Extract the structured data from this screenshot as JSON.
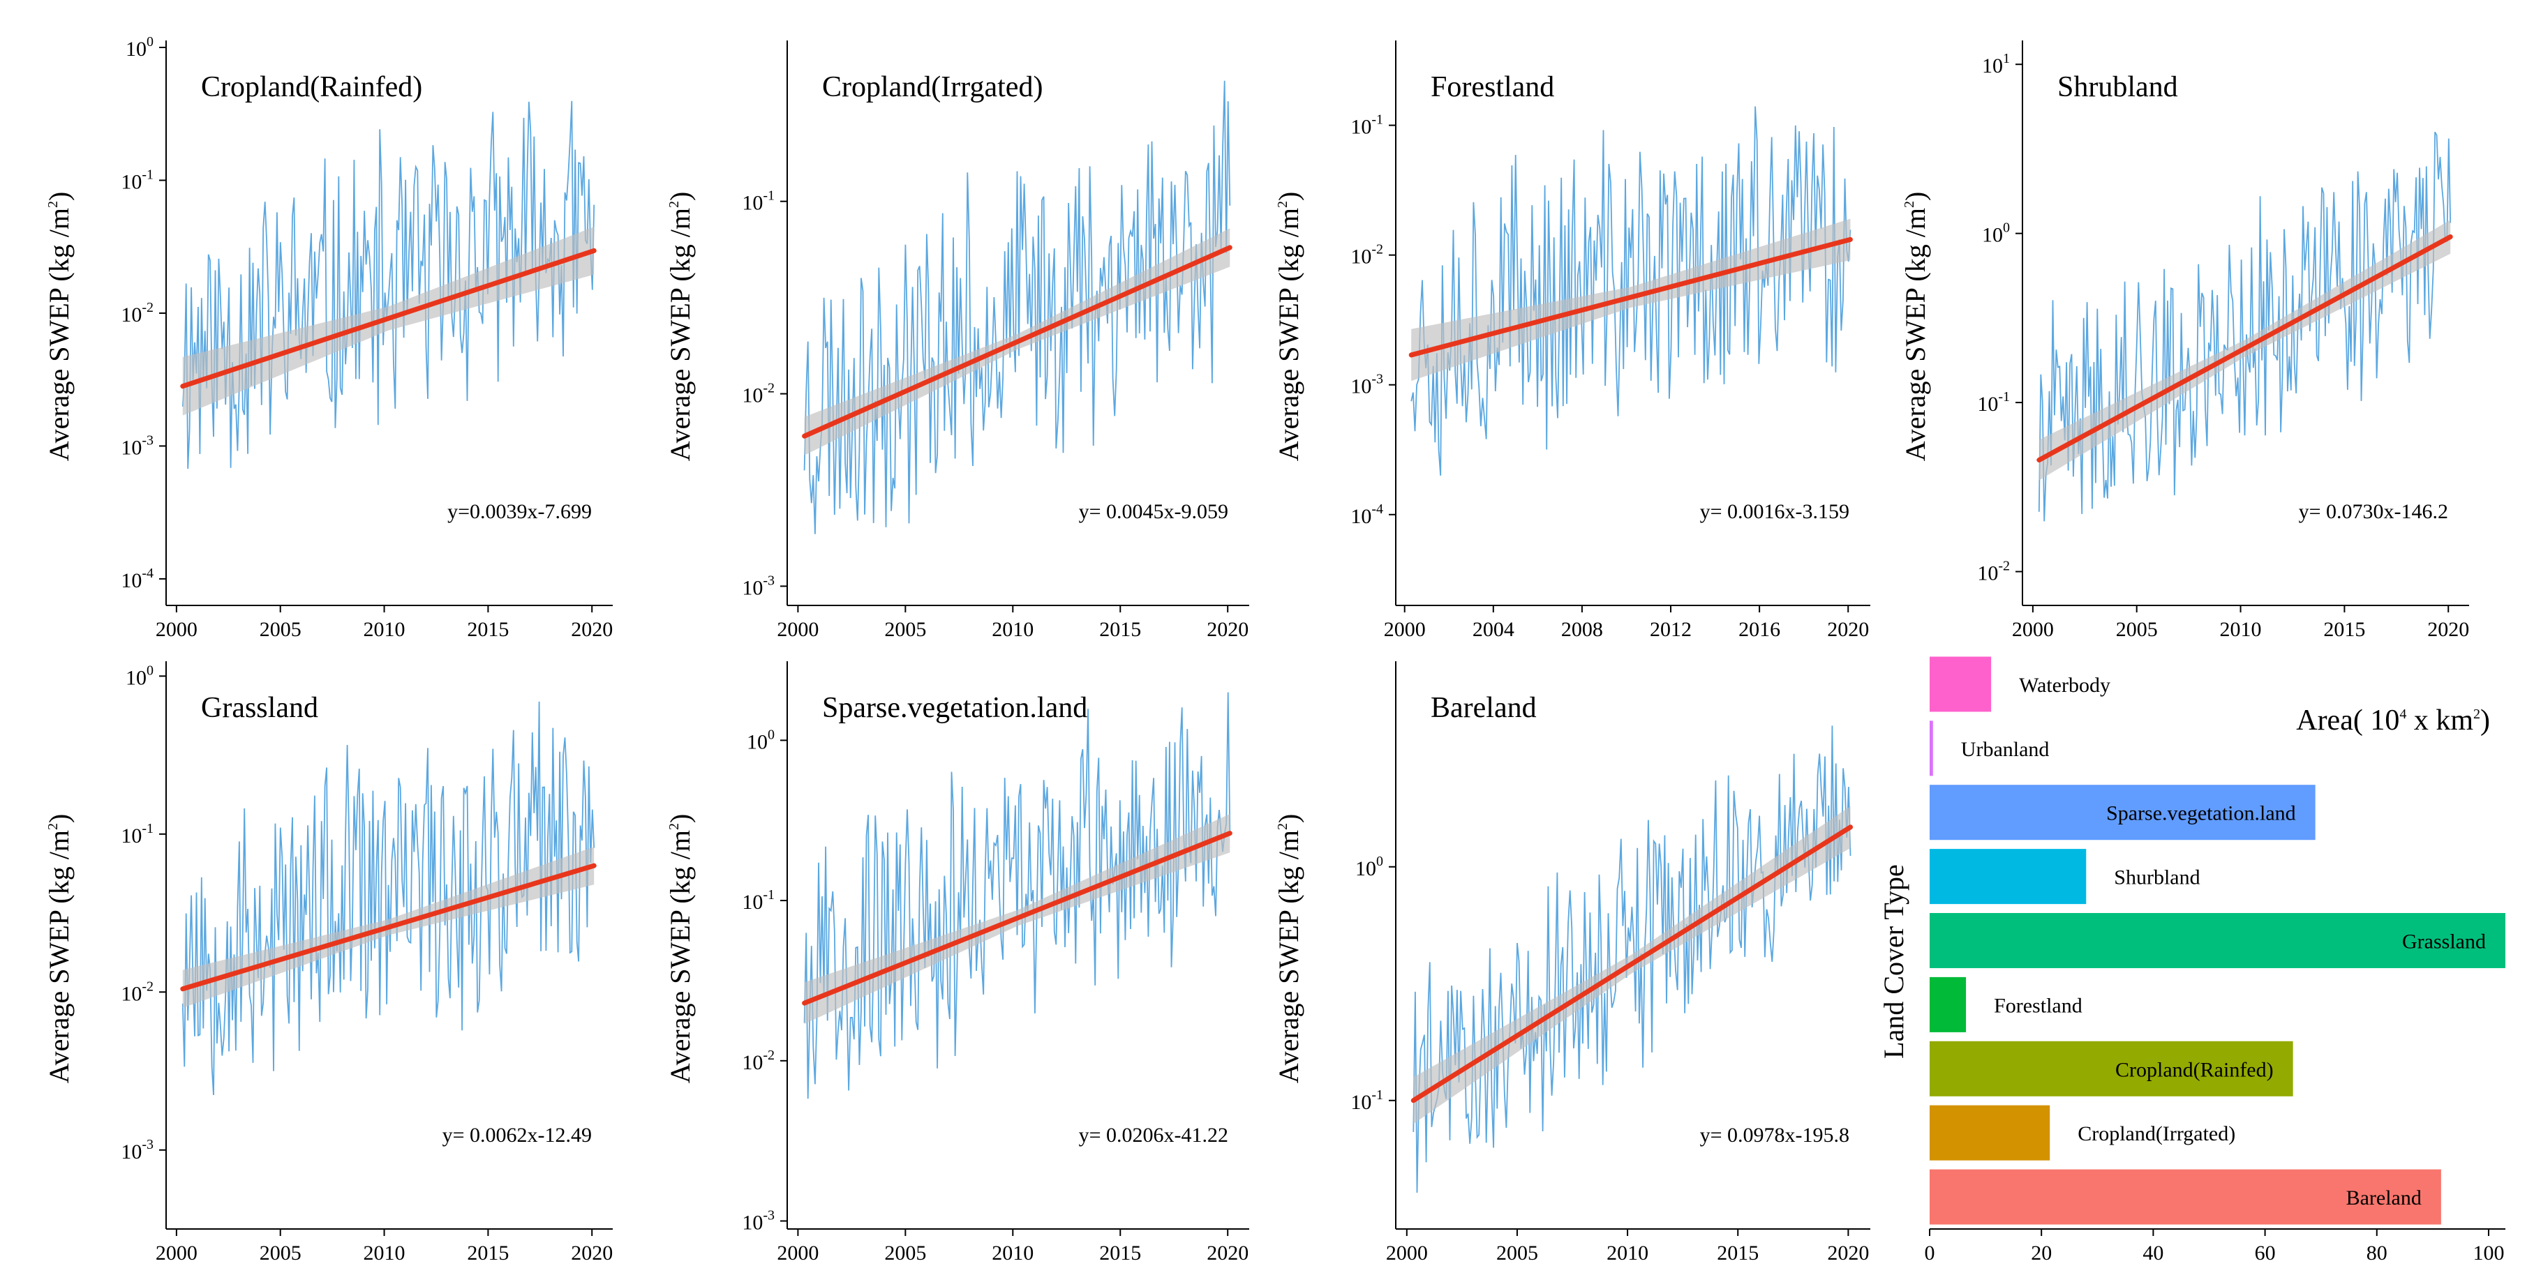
{
  "colors": {
    "series": "#5aa7e0",
    "trend": "#e8361c",
    "band": "#bfbfbf",
    "axis": "#000000"
  },
  "chart_data": [
    {
      "type": "line",
      "title": "Cropland(Rainfed)",
      "ylabel": "Average SWEP (kg /m",
      "ylabel_sup": "2",
      "ylabel_close": ")",
      "yscale": "log",
      "ylim_log10": [
        -4.2,
        0
      ],
      "y_ticks": [
        {
          "m": "10",
          "e": "0"
        },
        {
          "m": "10",
          "e": "-1"
        },
        {
          "m": "10",
          "e": "-2"
        },
        {
          "m": "10",
          "e": "-3"
        },
        {
          "m": "10",
          "e": "-4"
        }
      ],
      "y_tick_exps": [
        0,
        -1,
        -2,
        -3,
        -4
      ],
      "xlim": [
        1999.5,
        2021
      ],
      "x_ticks": [
        "2000",
        "2005",
        "2010",
        "2015",
        "2020"
      ],
      "x_tick_values": [
        2000,
        2005,
        2010,
        2015,
        2020
      ],
      "trend": {
        "start": [
          2000.3,
          -2.55
        ],
        "end": [
          2020.1,
          -1.53
        ],
        "band_start": 0.22,
        "band_mid": 0.09,
        "band_end": 0.18
      },
      "series_profile": {
        "base": -2.3,
        "slope": 0.048,
        "amp": 1.05,
        "min": -4.1,
        "max": -0.2,
        "seed": 11
      },
      "equation": "y=0.0039x-7.699"
    },
    {
      "type": "line",
      "title": "Cropland(Irrgated)",
      "ylabel": "Average SWEP (kg /m",
      "ylabel_sup": "2",
      "ylabel_close": ")",
      "yscale": "log",
      "ylim_log10": [
        -3.1,
        -0.2
      ],
      "y_ticks": [
        {
          "m": "10",
          "e": "-1"
        },
        {
          "m": "10",
          "e": "-2"
        },
        {
          "m": "10",
          "e": "-3"
        }
      ],
      "y_tick_exps": [
        -1,
        -2,
        -3
      ],
      "xlim": [
        1999.5,
        2021
      ],
      "x_ticks": [
        "2000",
        "2005",
        "2010",
        "2015",
        "2020"
      ],
      "x_tick_values": [
        2000,
        2005,
        2010,
        2015,
        2020
      ],
      "trend": {
        "start": [
          2000.3,
          -2.22
        ],
        "end": [
          2020.1,
          -1.24
        ],
        "band_start": 0.1,
        "band_mid": 0.04,
        "band_end": 0.1
      },
      "series_profile": {
        "base": -2.1,
        "slope": 0.05,
        "amp": 0.75,
        "min": -3.05,
        "max": -0.35,
        "seed": 23
      },
      "equation": "y= 0.0045x-9.059"
    },
    {
      "type": "line",
      "title": "Forestland",
      "ylabel": "Average SWEP (kg /m",
      "ylabel_sup": "2",
      "ylabel_close": ")",
      "yscale": "log",
      "ylim_log10": [
        -4.7,
        -0.4
      ],
      "y_ticks": [
        {
          "m": "10",
          "e": "-1"
        },
        {
          "m": "10",
          "e": "-2"
        },
        {
          "m": "10",
          "e": "-3"
        },
        {
          "m": "10",
          "e": "-4"
        }
      ],
      "y_tick_exps": [
        -1,
        -2,
        -3,
        -4
      ],
      "xlim": [
        1999.6,
        2021
      ],
      "x_ticks": [
        "2000",
        "2004",
        "2008",
        "2012",
        "2016",
        "2020"
      ],
      "x_tick_values": [
        2000,
        2004,
        2008,
        2012,
        2016,
        2020
      ],
      "trend": {
        "start": [
          2000.3,
          -2.77
        ],
        "end": [
          2020.1,
          -1.88
        ],
        "band_start": 0.2,
        "band_mid": 0.08,
        "band_end": 0.16
      },
      "series_profile": {
        "base": -2.6,
        "slope": 0.04,
        "amp": 1.1,
        "min": -4.6,
        "max": -0.55,
        "seed": 37
      },
      "equation": "y= 0.0016x-3.159"
    },
    {
      "type": "line",
      "title": "Shrubland",
      "ylabel": "Average SWEP (kg /m",
      "ylabel_sup": "2",
      "ylabel_close": ")",
      "yscale": "log",
      "ylim_log10": [
        -2.2,
        1.1
      ],
      "y_ticks": [
        {
          "m": "10",
          "e": "1"
        },
        {
          "m": "10",
          "e": "0"
        },
        {
          "m": "10",
          "e": "-1"
        },
        {
          "m": "10",
          "e": "-2"
        }
      ],
      "y_tick_exps": [
        1,
        0,
        -1,
        -2
      ],
      "xlim": [
        1999.5,
        2021
      ],
      "x_ticks": [
        "2000",
        "2005",
        "2010",
        "2015",
        "2020"
      ],
      "x_tick_values": [
        2000,
        2005,
        2010,
        2015,
        2020
      ],
      "trend": {
        "start": [
          2000.3,
          -1.34
        ],
        "end": [
          2020.1,
          -0.02
        ],
        "band_start": 0.12,
        "band_mid": 0.05,
        "band_end": 0.1
      },
      "series_profile": {
        "base": -1.25,
        "slope": 0.066,
        "amp": 0.7,
        "min": -2.1,
        "max": 0.95,
        "seed": 41
      },
      "equation": "y= 0.0730x-146.2"
    },
    {
      "type": "line",
      "title": "Grassland",
      "ylabel": "Average SWEP (kg /m",
      "ylabel_sup": "2",
      "ylabel_close": ")",
      "yscale": "log",
      "ylim_log10": [
        -3.5,
        0.05
      ],
      "y_ticks": [
        {
          "m": "10",
          "e": "0"
        },
        {
          "m": "10",
          "e": "-1"
        },
        {
          "m": "10",
          "e": "-2"
        },
        {
          "m": "10",
          "e": "-3"
        }
      ],
      "y_tick_exps": [
        0,
        -1,
        -2,
        -3
      ],
      "xlim": [
        1999.5,
        2021
      ],
      "x_ticks": [
        "2000",
        "2005",
        "2010",
        "2015",
        "2020"
      ],
      "x_tick_values": [
        2000,
        2005,
        2010,
        2015,
        2020
      ],
      "trend": {
        "start": [
          2000.3,
          -1.98
        ],
        "end": [
          2020.1,
          -1.2
        ],
        "band_start": 0.12,
        "band_mid": 0.05,
        "band_end": 0.12
      },
      "series_profile": {
        "base": -1.8,
        "slope": 0.04,
        "amp": 0.9,
        "min": -3.35,
        "max": -0.1,
        "seed": 53
      },
      "equation": "y= 0.0062x-12.49"
    },
    {
      "type": "line",
      "title": "Sparse.vegetation.land",
      "ylabel": "Average SWEP (kg /m",
      "ylabel_sup": "2",
      "ylabel_close": ")",
      "yscale": "log",
      "ylim_log10": [
        -3.05,
        0.45
      ],
      "y_ticks": [
        {
          "m": "10",
          "e": "0"
        },
        {
          "m": "10",
          "e": "-1"
        },
        {
          "m": "10",
          "e": "-2"
        },
        {
          "m": "10",
          "e": "-3"
        }
      ],
      "y_tick_exps": [
        0,
        -1,
        -2,
        -3
      ],
      "xlim": [
        1999.5,
        2021
      ],
      "x_ticks": [
        "2000",
        "2005",
        "2010",
        "2015",
        "2020"
      ],
      "x_tick_values": [
        2000,
        2005,
        2010,
        2015,
        2020
      ],
      "trend": {
        "start": [
          2000.3,
          -1.64
        ],
        "end": [
          2020.1,
          -0.58
        ],
        "band_start": 0.13,
        "band_mid": 0.05,
        "band_end": 0.12
      },
      "series_profile": {
        "base": -1.45,
        "slope": 0.052,
        "amp": 0.85,
        "min": -2.8,
        "max": 0.3,
        "seed": 67
      },
      "equation": "y= 0.0206x-41.22"
    },
    {
      "type": "line",
      "title": "Bareland",
      "ylabel": "Average SWEP (kg /m",
      "ylabel_sup": "2",
      "ylabel_close": ")",
      "yscale": "log",
      "ylim_log10": [
        -1.55,
        0.85
      ],
      "y_ticks": [
        {
          "m": "10",
          "e": "0"
        },
        {
          "m": "10",
          "e": "-1"
        }
      ],
      "y_tick_exps": [
        0,
        -1
      ],
      "xlim": [
        1999.5,
        2021
      ],
      "x_ticks": [
        "2000",
        "2005",
        "2010",
        "2015",
        "2020"
      ],
      "x_tick_values": [
        2000,
        2005,
        2010,
        2015,
        2020
      ],
      "trend": {
        "start": [
          2000.3,
          -1.0
        ],
        "end": [
          2020.1,
          0.17
        ],
        "band_start": 0.1,
        "band_mid": 0.04,
        "band_end": 0.09
      },
      "series_profile": {
        "base": -0.95,
        "slope": 0.058,
        "amp": 0.5,
        "min": -1.5,
        "max": 0.8,
        "seed": 79
      },
      "equation": "y=  0.0978x-195.8"
    },
    {
      "type": "bar",
      "orientation": "horizontal",
      "ylabel": "Land Cover Type",
      "area_label": "Area( 10",
      "area_label_sup": "4",
      "area_label_rest": " x km",
      "area_label_sup2": "2",
      "area_label_close": ")",
      "xlim": [
        0,
        103
      ],
      "x_ticks": [
        "0",
        "20",
        "40",
        "60",
        "80",
        "100"
      ],
      "x_tick_values": [
        0,
        20,
        40,
        60,
        80,
        100
      ],
      "categories": [
        "Waterbody",
        "Urbanland",
        "Sparse.vegetation.land",
        "Shurbland",
        "Grassland",
        "Forestland",
        "Cropland(Rainfed)",
        "Cropland(Irrgated)",
        "Bareland"
      ],
      "values": [
        11,
        0.6,
        69,
        28,
        103,
        6.5,
        65,
        21.5,
        91.5
      ],
      "bar_colors": [
        "#ff61cc",
        "#db72fb",
        "#619cff",
        "#00b9e3",
        "#00bf7d",
        "#00ba38",
        "#93aa00",
        "#d39200",
        "#f8766d"
      ],
      "label_inside": [
        false,
        false,
        true,
        false,
        true,
        false,
        true,
        false,
        true
      ]
    }
  ]
}
